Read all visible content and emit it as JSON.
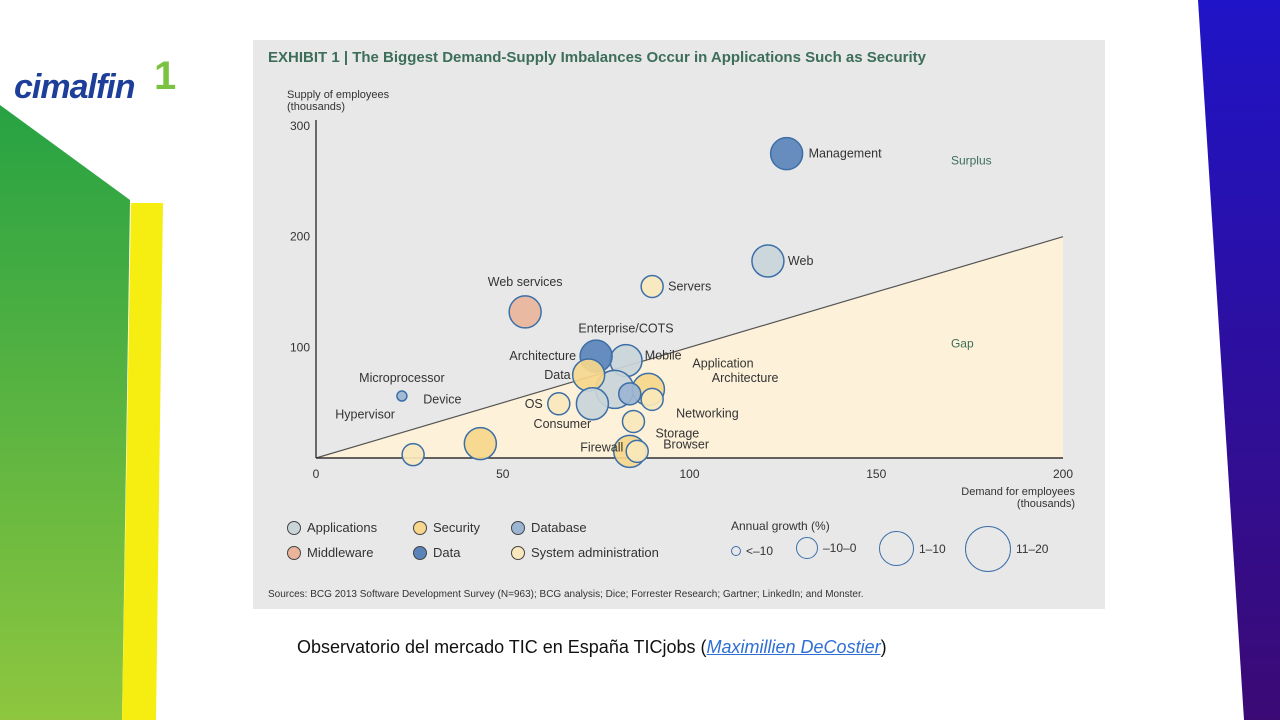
{
  "logo": {
    "text": "cimalfin",
    "mark": "1"
  },
  "exhibit": {
    "title": "EXHIBIT 1 | The Biggest Demand-Supply Imbalances Occur in Applications Such as Security",
    "sources": "Sources: BCG 2013 Software Development Survey (N=963); BCG analysis; Dice; Forrester Research; Gartner; LinkedIn; and Monster."
  },
  "caption": {
    "prefix": "Observatorio del mercado TIC en España TICjobs (",
    "link": "Maximillien DeCostier",
    "suffix": ")"
  },
  "colors": {
    "Applications": "#c9d5d9",
    "Middleware": "#e9b49a",
    "Security": "#f6d78c",
    "Data": "#5a84b9",
    "Database": "#9cb5d3",
    "System administration": "#fae8bc",
    "gap_fill": "#fdf1d9",
    "accent_text": "#3c6e5a"
  },
  "chart_data": {
    "type": "scatter",
    "title": "EXHIBIT 1 | The Biggest Demand-Supply Imbalances Occur in Applications Such as Security",
    "xlabel": "Demand for employees (thousands)",
    "ylabel": "Supply of employees (thousands)",
    "xlim": [
      0,
      200
    ],
    "ylim": [
      0,
      300
    ],
    "xticks": [
      0,
      50,
      100,
      150,
      200
    ],
    "yticks": [
      100,
      200,
      300
    ],
    "region_labels": [
      {
        "text": "Surplus",
        "x": 170,
        "y": 265
      },
      {
        "text": "Gap",
        "x": 170,
        "y": 100
      }
    ],
    "diagonal": {
      "from": [
        0,
        0
      ],
      "to": [
        200,
        200
      ]
    },
    "points": [
      {
        "label": "Management",
        "x": 126,
        "y": 275,
        "category": "Data",
        "size": 3
      },
      {
        "label": "Web",
        "x": 121,
        "y": 178,
        "category": "Applications",
        "size": 3
      },
      {
        "label": "Servers",
        "x": 90,
        "y": 155,
        "category": "System administration",
        "size": 2
      },
      {
        "label": "Web services",
        "x": 56,
        "y": 132,
        "category": "Middleware",
        "size": 3
      },
      {
        "label": "Enterprise/COTS",
        "x": 83,
        "y": 88,
        "category": "Applications",
        "size": 3
      },
      {
        "label": "Architecture",
        "x": 75,
        "y": 92,
        "category": "Data",
        "size": 3
      },
      {
        "label": "Mobile",
        "x": 80,
        "y": 62,
        "category": "Applications",
        "size": 4
      },
      {
        "label": "Data",
        "x": 73,
        "y": 75,
        "category": "Security",
        "size": 3
      },
      {
        "label": "Application",
        "x": 89,
        "y": 62,
        "category": "Security",
        "size": 3
      },
      {
        "label": "Architecture",
        "x": 84,
        "y": 58,
        "category": "Database",
        "size": 2
      },
      {
        "label": "Networking",
        "x": 90,
        "y": 53,
        "category": "System administration",
        "size": 2
      },
      {
        "label": "OS",
        "x": 65,
        "y": 49,
        "category": "System administration",
        "size": 2
      },
      {
        "label": "Microprocessor",
        "x": 23,
        "y": 56,
        "category": "Database",
        "size": 1
      },
      {
        "label": "Consumer",
        "x": 74,
        "y": 49,
        "category": "Applications",
        "size": 3
      },
      {
        "label": "Storage",
        "x": 85,
        "y": 33,
        "category": "System administration",
        "size": 2
      },
      {
        "label": "Device",
        "x": 44,
        "y": 13,
        "category": "Security",
        "size": 3
      },
      {
        "label": "Hypervisor",
        "x": 26,
        "y": 3,
        "category": "System administration",
        "size": 2
      },
      {
        "label": "Firewall",
        "x": 84,
        "y": 6,
        "category": "Security",
        "size": 3
      },
      {
        "label": "Browser",
        "x": 86,
        "y": 6,
        "category": "System administration",
        "size": 2
      }
    ],
    "legend": [
      "Applications",
      "Security",
      "Database",
      "Middleware",
      "Data",
      "System administration"
    ],
    "size_legend": {
      "title": "Annual growth (%)",
      "items": [
        "<–10",
        "–10–0",
        "1–10",
        "11–20"
      ]
    }
  }
}
